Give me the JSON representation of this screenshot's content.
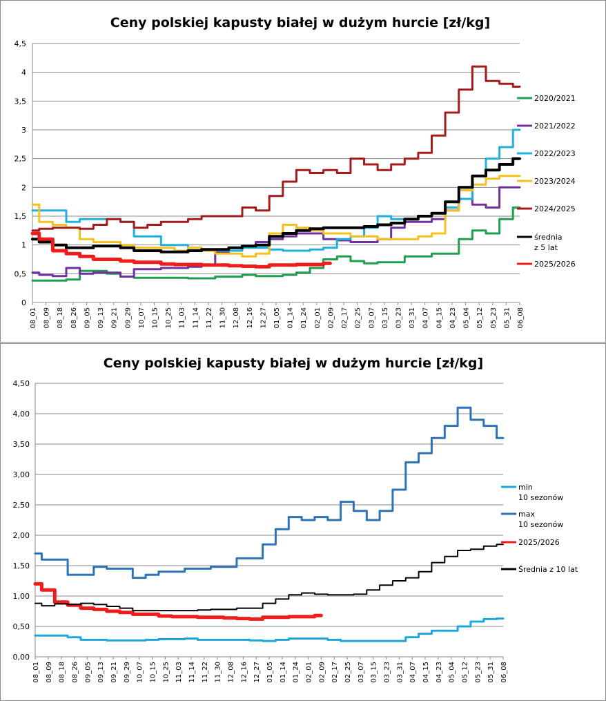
{
  "chart_data": [
    {
      "type": "line",
      "title": "Ceny polskiej kapusty białej w dużym hurcie [zł/kg]",
      "xlabel": "",
      "ylabel": "",
      "ylim": [
        0,
        4.5
      ],
      "y_ticks": [
        "0",
        "0,5",
        "1",
        "1,5",
        "2",
        "2,5",
        "3",
        "3,5",
        "4",
        "4,5"
      ],
      "y_tick_values": [
        0,
        0.5,
        1,
        1.5,
        2,
        2.5,
        3,
        3.5,
        4,
        4.5
      ],
      "categories": [
        "08_01",
        "08_09",
        "08_18",
        "08_26",
        "09_05",
        "09_13",
        "09_21",
        "09_29",
        "10_07",
        "10_15",
        "10_25",
        "11_03",
        "11_14",
        "11_22",
        "11_30",
        "12_08",
        "12_16",
        "12_27",
        "01_05",
        "01_14",
        "01_24",
        "02_01",
        "02_09",
        "02_17",
        "02_25",
        "03_07",
        "03_15",
        "03_23",
        "03_31",
        "04_07",
        "04_15",
        "04_23",
        "05_04",
        "05_12",
        "05_23",
        "05_31",
        "06_08"
      ],
      "grid": true,
      "legend_position": "right",
      "series": [
        {
          "name": "2020/2021",
          "color": "#1e9e4f",
          "width": 3,
          "values": [
            0.38,
            0.38,
            0.38,
            0.4,
            0.55,
            0.55,
            0.5,
            0.45,
            0.43,
            0.43,
            0.43,
            0.43,
            0.42,
            0.42,
            0.45,
            0.45,
            0.48,
            0.46,
            0.46,
            0.48,
            0.52,
            0.6,
            0.75,
            0.8,
            0.72,
            0.68,
            0.7,
            0.7,
            0.8,
            0.8,
            0.85,
            0.85,
            1.1,
            1.25,
            1.2,
            1.45,
            1.65
          ]
        },
        {
          "name": "2021/2022",
          "color": "#7030a0",
          "width": 3,
          "values": [
            0.52,
            0.48,
            0.46,
            0.6,
            0.5,
            0.52,
            0.52,
            0.45,
            0.58,
            0.58,
            0.6,
            0.6,
            0.62,
            0.65,
            0.88,
            0.95,
            0.98,
            1.05,
            1.1,
            1.15,
            1.2,
            1.2,
            1.1,
            1.08,
            1.05,
            1.05,
            1.1,
            1.3,
            1.4,
            1.4,
            1.45,
            1.6,
            2.0,
            1.7,
            1.65,
            2.0,
            2.0
          ]
        },
        {
          "name": "2022/2023",
          "color": "#1fb0e0",
          "width": 3,
          "values": [
            1.6,
            1.6,
            1.6,
            1.4,
            1.45,
            1.45,
            1.45,
            1.4,
            1.15,
            1.15,
            1.0,
            1.0,
            0.95,
            0.92,
            0.9,
            0.9,
            0.95,
            0.95,
            0.92,
            0.9,
            0.9,
            0.92,
            0.95,
            1.1,
            1.15,
            1.3,
            1.5,
            1.45,
            1.45,
            1.5,
            1.55,
            1.65,
            1.8,
            2.2,
            2.5,
            2.7,
            3.0
          ]
        },
        {
          "name": "2023/2024",
          "color": "#f4c01b",
          "width": 3,
          "values": [
            1.7,
            1.4,
            1.35,
            1.3,
            1.1,
            1.05,
            1.05,
            1.0,
            0.95,
            0.95,
            0.95,
            0.9,
            0.95,
            0.9,
            0.85,
            0.85,
            0.8,
            0.85,
            1.2,
            1.35,
            1.3,
            1.25,
            1.2,
            1.2,
            1.15,
            1.15,
            1.1,
            1.1,
            1.1,
            1.15,
            1.2,
            1.6,
            1.95,
            2.05,
            2.15,
            2.2,
            2.2
          ]
        },
        {
          "name": "2024/2025",
          "color": "#a31b1b",
          "width": 3,
          "values": [
            1.25,
            1.28,
            1.3,
            1.3,
            1.28,
            1.35,
            1.45,
            1.4,
            1.3,
            1.35,
            1.4,
            1.4,
            1.45,
            1.5,
            1.5,
            1.5,
            1.65,
            1.6,
            1.85,
            2.1,
            2.3,
            2.25,
            2.3,
            2.25,
            2.5,
            2.4,
            2.3,
            2.4,
            2.5,
            2.6,
            2.9,
            3.3,
            3.7,
            4.1,
            3.85,
            3.8,
            3.75
          ]
        },
        {
          "name": "średnia\nz 5 lat",
          "color": "#000000",
          "width": 4,
          "values": [
            1.1,
            1.05,
            1.0,
            0.95,
            0.95,
            0.98,
            0.98,
            0.95,
            0.9,
            0.9,
            0.88,
            0.88,
            0.9,
            0.92,
            0.92,
            0.95,
            0.98,
            1.0,
            1.15,
            1.2,
            1.25,
            1.28,
            1.3,
            1.3,
            1.3,
            1.32,
            1.35,
            1.38,
            1.45,
            1.5,
            1.55,
            1.75,
            2.0,
            2.2,
            2.3,
            2.4,
            2.5
          ]
        },
        {
          "name": "2025/2026",
          "color": "#ef1c1c",
          "width": 5,
          "values": [
            1.2,
            1.1,
            0.9,
            0.85,
            0.8,
            0.75,
            0.75,
            0.72,
            0.7,
            0.7,
            0.67,
            0.66,
            0.66,
            0.65,
            0.65,
            0.64,
            0.63,
            0.62,
            0.65,
            0.65,
            0.66,
            0.66,
            0.68,
            null,
            null,
            null,
            null,
            null,
            null,
            null,
            null,
            null,
            null,
            null,
            null,
            null,
            null
          ]
        }
      ]
    },
    {
      "type": "line",
      "title": "Ceny polskiej kapusty białej w dużym hurcie [zł/kg]",
      "xlabel": "",
      "ylabel": "",
      "ylim": [
        0,
        4.5
      ],
      "y_ticks": [
        "0,00",
        "0,50",
        "1,00",
        "1,50",
        "2,00",
        "2,50",
        "3,00",
        "3,50",
        "4,00",
        "4,50"
      ],
      "y_tick_values": [
        0,
        0.5,
        1,
        1.5,
        2,
        2.5,
        3,
        3.5,
        4,
        4.5
      ],
      "categories": [
        "08_01",
        "08_09",
        "08_18",
        "08_26",
        "09_05",
        "09_13",
        "09_21",
        "09_29",
        "10_07",
        "10_15",
        "10_25",
        "11_03",
        "11_14",
        "11_22",
        "11_30",
        "12_08",
        "12_16",
        "12_27",
        "01_05",
        "01_14",
        "01_24",
        "02_01",
        "02_09",
        "02_17",
        "02_25",
        "03_07",
        "03_15",
        "03_23",
        "03_31",
        "04_07",
        "04_15",
        "04_23",
        "05_04",
        "05_12",
        "05_23",
        "05_31",
        "06_08"
      ],
      "grid": true,
      "legend_position": "right",
      "series": [
        {
          "name": "min\n10 sezonów",
          "color": "#1fa5de",
          "width": 3,
          "values": [
            0.35,
            0.35,
            0.35,
            0.32,
            0.28,
            0.28,
            0.27,
            0.27,
            0.27,
            0.28,
            0.29,
            0.29,
            0.3,
            0.28,
            0.28,
            0.28,
            0.28,
            0.27,
            0.26,
            0.28,
            0.3,
            0.3,
            0.3,
            0.28,
            0.26,
            0.26,
            0.26,
            0.26,
            0.26,
            0.32,
            0.38,
            0.43,
            0.43,
            0.5,
            0.58,
            0.62,
            0.63
          ]
        },
        {
          "name": "max\n10 sezonów",
          "color": "#2c72b4",
          "width": 3,
          "values": [
            1.7,
            1.6,
            1.6,
            1.35,
            1.35,
            1.48,
            1.45,
            1.45,
            1.3,
            1.35,
            1.4,
            1.4,
            1.45,
            1.45,
            1.48,
            1.48,
            1.62,
            1.62,
            1.85,
            2.1,
            2.3,
            2.25,
            2.3,
            2.25,
            2.55,
            2.4,
            2.25,
            2.4,
            2.75,
            3.2,
            3.35,
            3.6,
            3.8,
            4.1,
            3.9,
            3.8,
            3.6
          ]
        },
        {
          "name": "2025/2026",
          "color": "#ef1c1c",
          "width": 5,
          "values": [
            1.2,
            1.1,
            0.9,
            0.85,
            0.8,
            0.78,
            0.75,
            0.73,
            0.7,
            0.7,
            0.67,
            0.66,
            0.66,
            0.65,
            0.65,
            0.64,
            0.63,
            0.62,
            0.65,
            0.65,
            0.66,
            0.66,
            0.68,
            null,
            null,
            null,
            null,
            null,
            null,
            null,
            null,
            null,
            null,
            null,
            null,
            null,
            null
          ]
        },
        {
          "name": "Średnia z 10 lat",
          "color": "#000000",
          "width": 2,
          "values": [
            0.88,
            0.84,
            0.87,
            0.86,
            0.88,
            0.86,
            0.83,
            0.8,
            0.76,
            0.76,
            0.76,
            0.76,
            0.76,
            0.77,
            0.78,
            0.78,
            0.8,
            0.8,
            0.88,
            0.95,
            1.02,
            1.05,
            1.03,
            1.02,
            1.02,
            1.03,
            1.1,
            1.18,
            1.25,
            1.3,
            1.4,
            1.55,
            1.65,
            1.75,
            1.77,
            1.82,
            1.85
          ]
        }
      ]
    }
  ]
}
